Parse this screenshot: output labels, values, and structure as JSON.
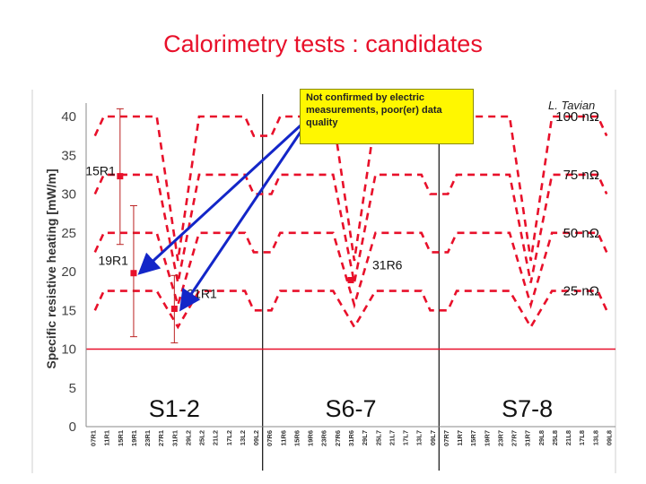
{
  "slide": {
    "title": "Calorimetry tests : candidates",
    "author": "L. Tavian",
    "note": "Not confirmed by electric measurements, poor(er) data quality"
  },
  "chart_data": {
    "type": "line",
    "ylabel": "Specific resistive heating [mW/m]",
    "ylim": [
      0,
      40
    ],
    "yticks": [
      0,
      5,
      10,
      15,
      20,
      25,
      30,
      35,
      40
    ],
    "categories": [
      "07R1",
      "11R1",
      "15R1",
      "19R1",
      "23R1",
      "27R1",
      "31R1",
      "29L2",
      "25L2",
      "21L2",
      "17L2",
      "13L2",
      "09L2",
      "07R6",
      "11R6",
      "15R6",
      "19R6",
      "23R6",
      "27R6",
      "31R6",
      "29L7",
      "25L7",
      "21L7",
      "17L7",
      "13L7",
      "09L7",
      "07R7",
      "11R7",
      "15R7",
      "19R7",
      "23R7",
      "27R7",
      "31R7",
      "29L8",
      "25L8",
      "21L8",
      "17L8",
      "13L8",
      "09L8"
    ],
    "sectors": [
      "S1-2",
      "S6-7",
      "S7-8"
    ],
    "reference_lines": [
      {
        "label": "100 nΩ"
      },
      {
        "label": "75 nΩ"
      },
      {
        "label": "50 nΩ"
      },
      {
        "label": "25 nΩ"
      }
    ],
    "baseline": 10,
    "points": [
      {
        "label": "15R1",
        "category": "15R1",
        "y": 32.3,
        "err": [
          23.5,
          41.0
        ]
      },
      {
        "label": "19R1",
        "category": "19R1",
        "y": 19.8,
        "err": [
          11.6,
          28.5
        ]
      },
      {
        "label": "31R1",
        "category": "31R1",
        "y": 15.2,
        "err": [
          10.8,
          19.5
        ]
      },
      {
        "label": "31R6",
        "category": "31R6",
        "y": 18.9,
        "err": [
          18.9,
          18.9
        ]
      }
    ],
    "colors": {
      "refline": "#e8102a",
      "baseline": "#e8102a",
      "point": "#e8102a",
      "arrow": "#1326c8",
      "note_bg": "#fff700"
    }
  }
}
